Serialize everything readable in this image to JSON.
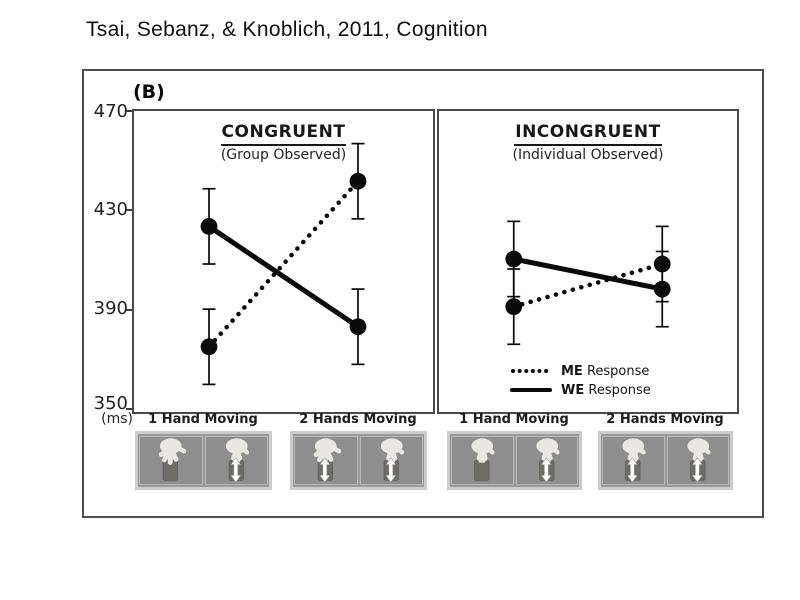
{
  "slide": {
    "title": "Tsai, Sebanz, & Knoblich, 2011, Cognition"
  },
  "figure": {
    "panel_label": "(B)"
  },
  "axis": {
    "tick_labels": [
      "470",
      "430",
      "390",
      "350"
    ],
    "unit": "(ms)"
  },
  "legend": {
    "items": [
      {
        "key": "ME",
        "rest": " Response",
        "style": "dotted"
      },
      {
        "key": "WE",
        "rest": " Response",
        "style": "solid"
      }
    ]
  },
  "chart_data": [
    {
      "type": "line",
      "title": "CONGRUENT",
      "subtitle": "(Group Observed)",
      "categories": [
        "1 Hand Moving",
        "2 Hands Moving"
      ],
      "series": [
        {
          "name": "ME Response",
          "line_style": "dotted",
          "values": [
            376,
            442
          ],
          "error_bars": [
            15,
            15
          ]
        },
        {
          "name": "WE Response",
          "line_style": "solid",
          "values": [
            424,
            384
          ],
          "error_bars": [
            15,
            15
          ]
        }
      ],
      "ylim": [
        350,
        470
      ],
      "yticks": [
        350,
        390,
        430,
        470
      ],
      "ylabel": "(ms)",
      "grid": false
    },
    {
      "type": "line",
      "title": "INCONGRUENT",
      "subtitle": "(Individual Observed)",
      "categories": [
        "1 Hand Moving",
        "2 Hands Moving"
      ],
      "series": [
        {
          "name": "ME Response",
          "line_style": "dotted",
          "values": [
            392,
            409
          ],
          "error_bars": [
            15,
            15
          ]
        },
        {
          "name": "WE Response",
          "line_style": "solid",
          "values": [
            411,
            399
          ],
          "error_bars": [
            15,
            15
          ]
        }
      ],
      "ylim": [
        350,
        470
      ],
      "yticks": [
        350,
        390,
        430,
        470
      ],
      "ylabel": "(ms)",
      "legend_position": "lower right",
      "grid": false
    }
  ],
  "stimuli": {
    "groups": [
      {
        "panel": "CONGRUENT",
        "boxes": [
          {
            "label": "1 Hand Moving",
            "hands": [
              {
                "pose": "open",
                "moving": false
              },
              {
                "pose": "grasp",
                "moving": true
              }
            ]
          },
          {
            "label": "2 Hands Moving",
            "hands": [
              {
                "pose": "open",
                "moving": true
              },
              {
                "pose": "grasp",
                "moving": true
              }
            ]
          }
        ]
      },
      {
        "panel": "INCONGRUENT",
        "boxes": [
          {
            "label": "1 Hand Moving",
            "hands": [
              {
                "pose": "grasp",
                "moving": false
              },
              {
                "pose": "grasp",
                "moving": true
              }
            ]
          },
          {
            "label": "2 Hands Moving",
            "hands": [
              {
                "pose": "grasp",
                "moving": true
              },
              {
                "pose": "grasp",
                "moving": true
              }
            ]
          }
        ]
      }
    ]
  },
  "colors": {
    "ink": "#0a0a0a",
    "frame": "#4f4f4f",
    "stimulus_box_bg": "#9a9a9a",
    "stimulus_box_border": "#cbcbcb",
    "hand": "#e9e7e3",
    "object": "#6e6c67",
    "arrow": "#ffffff"
  }
}
